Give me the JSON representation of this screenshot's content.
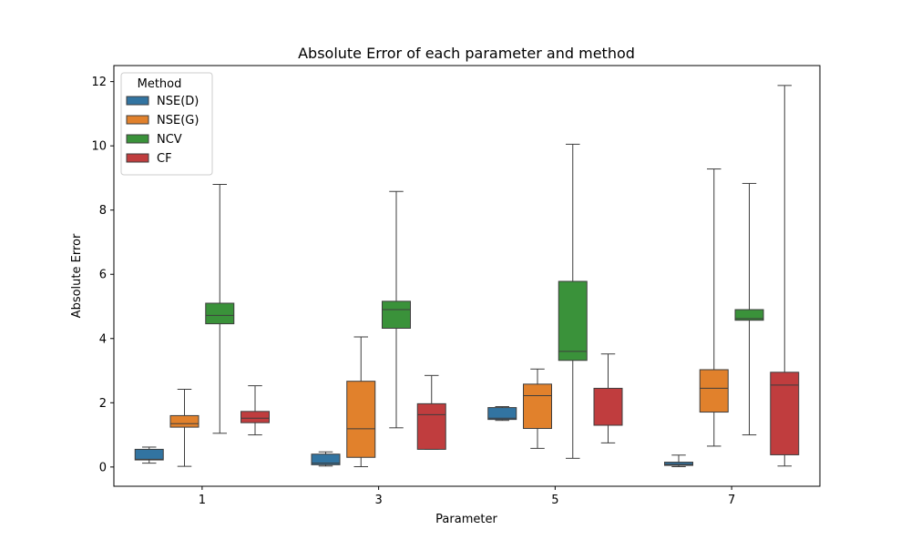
{
  "chart_data": {
    "type": "boxplot",
    "title": "Absolute Error of each parameter and method",
    "xlabel": "Parameter",
    "ylabel": "Absolute Error",
    "categories": [
      "1",
      "3",
      "5",
      "7"
    ],
    "yticks": [
      0,
      2,
      4,
      6,
      8,
      10,
      12
    ],
    "ylim": [
      -0.6,
      12.5
    ],
    "legend": {
      "title": "Method",
      "position": "top-left"
    },
    "series": [
      {
        "name": "NSE(D)",
        "color": "#3274a1",
        "boxes": [
          {
            "min": 0.12,
            "q1": 0.22,
            "median": 0.24,
            "q3": 0.55,
            "max": 0.62
          },
          {
            "min": 0.03,
            "q1": 0.07,
            "median": 0.12,
            "q3": 0.4,
            "max": 0.47
          },
          {
            "min": 1.45,
            "q1": 1.48,
            "median": 1.52,
            "q3": 1.85,
            "max": 1.88
          },
          {
            "min": 0.01,
            "q1": 0.05,
            "median": 0.08,
            "q3": 0.15,
            "max": 0.37
          }
        ]
      },
      {
        "name": "NSE(G)",
        "color": "#e1812c",
        "boxes": [
          {
            "min": 0.02,
            "q1": 1.24,
            "median": 1.35,
            "q3": 1.6,
            "max": 2.42
          },
          {
            "min": 0.01,
            "q1": 0.3,
            "median": 1.19,
            "q3": 2.67,
            "max": 4.05
          },
          {
            "min": 0.58,
            "q1": 1.2,
            "median": 2.22,
            "q3": 2.58,
            "max": 3.05
          },
          {
            "min": 0.65,
            "q1": 1.71,
            "median": 2.45,
            "q3": 3.03,
            "max": 9.28
          }
        ]
      },
      {
        "name": "NCV",
        "color": "#3a923a",
        "boxes": [
          {
            "min": 1.05,
            "q1": 4.46,
            "median": 4.72,
            "q3": 5.1,
            "max": 8.8
          },
          {
            "min": 1.22,
            "q1": 4.32,
            "median": 4.9,
            "q3": 5.16,
            "max": 8.58
          },
          {
            "min": 0.27,
            "q1": 3.32,
            "median": 3.6,
            "q3": 5.78,
            "max": 10.05
          },
          {
            "min": 1.0,
            "q1": 4.57,
            "median": 4.62,
            "q3": 4.9,
            "max": 8.83
          }
        ]
      },
      {
        "name": "CF",
        "color": "#c03d3e",
        "boxes": [
          {
            "min": 1.0,
            "q1": 1.38,
            "median": 1.52,
            "q3": 1.73,
            "max": 2.53
          },
          {
            "min": 0.55,
            "q1": 0.55,
            "median": 1.63,
            "q3": 1.97,
            "max": 2.85
          },
          {
            "min": 0.75,
            "q1": 1.3,
            "median": 1.3,
            "q3": 2.45,
            "max": 3.52
          },
          {
            "min": 0.03,
            "q1": 0.38,
            "median": 2.55,
            "q3": 2.95,
            "max": 11.88
          }
        ]
      }
    ]
  }
}
